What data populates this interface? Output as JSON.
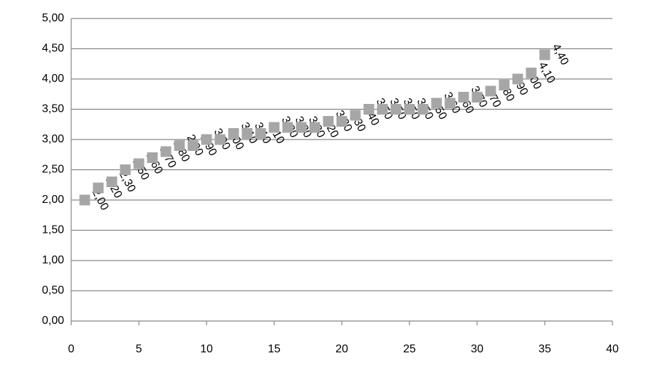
{
  "chart_data": {
    "type": "scatter",
    "x": [
      1,
      2,
      3,
      4,
      5,
      6,
      7,
      8,
      9,
      10,
      11,
      12,
      13,
      14,
      15,
      16,
      17,
      18,
      19,
      20,
      21,
      22,
      23,
      24,
      25,
      26,
      27,
      28,
      29,
      30,
      31,
      32,
      33,
      34,
      35
    ],
    "values": [
      2.0,
      2.2,
      2.3,
      2.5,
      2.6,
      2.7,
      2.8,
      2.9,
      2.9,
      3.0,
      3.0,
      3.1,
      3.1,
      3.1,
      3.2,
      3.2,
      3.2,
      3.2,
      3.3,
      3.3,
      3.4,
      3.5,
      3.5,
      3.5,
      3.5,
      3.5,
      3.6,
      3.6,
      3.7,
      3.7,
      3.8,
      3.9,
      4.0,
      4.1,
      4.4
    ],
    "value_labels": [
      "2,00",
      "2,20",
      "2,30",
      "2,50",
      "2,60",
      "2,70",
      "2,80",
      "2,90",
      "2,90",
      "3,00",
      "3,00",
      "3,10",
      "3,10",
      "3,10",
      "3,20",
      "3,20",
      "3,20",
      "3,20",
      "3,30",
      "3,30",
      "3,40",
      "3,50",
      "3,50",
      "3,50",
      "3,50",
      "3,50",
      "3,60",
      "3,60",
      "3,70",
      "3,70",
      "3,80",
      "3,90",
      "4,00",
      "4,10",
      "4,40"
    ],
    "color": "#a6a6a6",
    "xlim": [
      0,
      40
    ],
    "xticks": [
      0,
      5,
      10,
      15,
      20,
      25,
      30,
      35,
      40
    ],
    "ylim": [
      0,
      5
    ],
    "yticks": [
      {
        "value": 0,
        "label": "0,00"
      },
      {
        "value": 0.5,
        "label": "0,50"
      },
      {
        "value": 1,
        "label": "1,00"
      },
      {
        "value": 1.5,
        "label": "1,50"
      },
      {
        "value": 2,
        "label": "2,00"
      },
      {
        "value": 2.5,
        "label": "2,50"
      },
      {
        "value": 3,
        "label": "3,00"
      },
      {
        "value": 3.5,
        "label": "3,50"
      },
      {
        "value": 4,
        "label": "4,00"
      },
      {
        "value": 4.5,
        "label": "4,50"
      },
      {
        "value": 5,
        "label": "5,00"
      }
    ],
    "grid": true
  }
}
